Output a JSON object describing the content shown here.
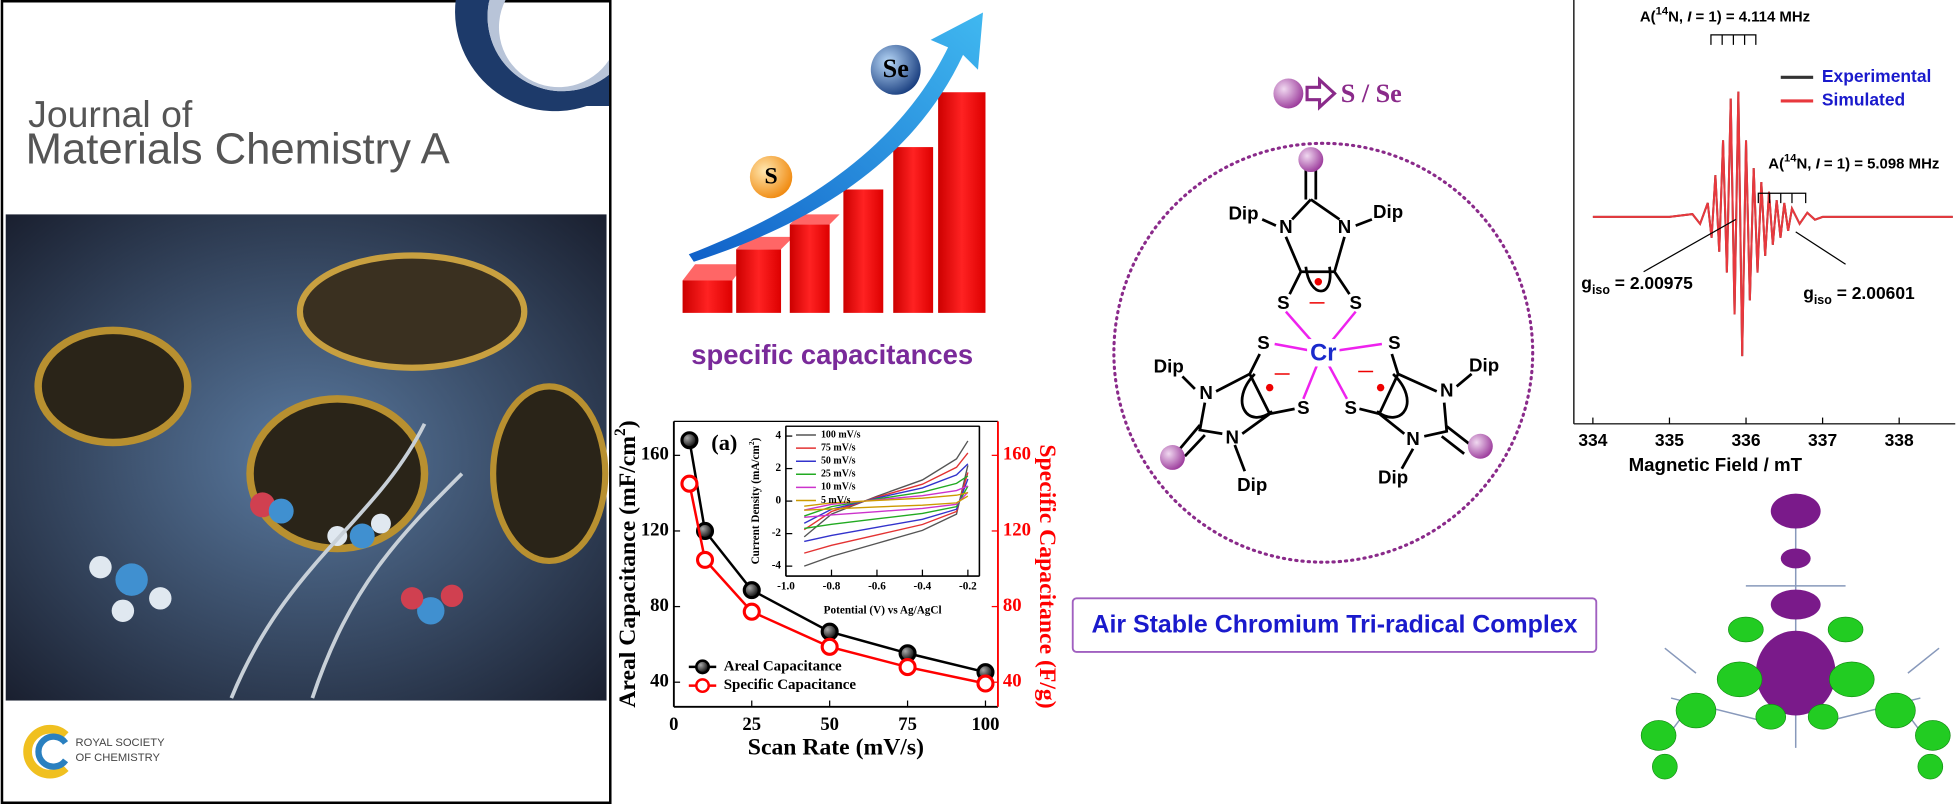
{
  "cover": {
    "journal_line1": "Journal of",
    "journal_line2": "Materials Chemistry A",
    "publisher_line1": "ROYAL SOCIETY",
    "publisher_line2": "OF CHEMISTRY"
  },
  "growth_graphic": {
    "caption": "specific capacitances",
    "low_element": "S",
    "high_element": "Se"
  },
  "molecule": {
    "legend": "S / Se",
    "metal": "Cr",
    "atoms": [
      "Dip",
      "N",
      "N",
      "Dip",
      "S",
      "S",
      "S",
      "Dip",
      "N",
      "S",
      "N",
      "Dip",
      "S",
      "Dip",
      "N",
      "S",
      "N",
      "Dip"
    ]
  },
  "banner": "Air Stable Chromium Tri-radical Complex",
  "chart_data": [
    {
      "type": "line",
      "panel_label": "(a)",
      "x_label": "Scan Rate (mV/s)",
      "y_label_parts": [
        "Areal Capacitance (mF/cm",
        "2",
        ")"
      ],
      "y2_label": "Specific Capacitance (F/g)",
      "x": [
        5,
        10,
        25,
        50,
        75,
        100
      ],
      "xlim": [
        0,
        104
      ],
      "xticks": [
        0,
        25,
        50,
        75,
        100
      ],
      "ylim": [
        27,
        178
      ],
      "yticks": [
        40,
        80,
        120,
        160
      ],
      "y2lim": [
        27,
        178
      ],
      "y2ticks": [
        40,
        80,
        120,
        160
      ],
      "markers": true,
      "legend": "lower left",
      "series": [
        {
          "name": "Areal Capacitance",
          "color": "#000000",
          "values": [
            168,
            120,
            88.7,
            66.7,
            55.3,
            45.3
          ]
        },
        {
          "name": "Specific Capacitance",
          "color": "#ff0000",
          "axis": "y2",
          "values": [
            145,
            104.7,
            77.3,
            58.7,
            48,
            39.3
          ]
        }
      ]
    },
    {
      "type": "cv",
      "x_label": "Potential (V) vs Ag/AgCl",
      "y_label_parts": [
        "Current Density (mA/cm",
        "2",
        ")"
      ],
      "x": [
        -0.92,
        -0.8,
        -0.6,
        -0.4,
        -0.25,
        -0.2
      ],
      "xlim": [
        -1.0,
        -0.15
      ],
      "xticks": [
        {
          "value": -1.0,
          "label": "-1.0"
        },
        -0.8,
        -0.6,
        -0.4,
        -0.2
      ],
      "ylim": [
        -4.6,
        4.6
      ],
      "yticks": [
        -4,
        -2,
        0,
        2,
        4
      ],
      "legend": "upper left",
      "series": [
        {
          "name": "100 mV/s",
          "color": "#555555",
          "values": [
            -2.2,
            -0.8,
            0.3,
            1.3,
            2.6,
            3.7
          ],
          "return_values": [
            -4.0,
            -3.4,
            -2.6,
            -1.8,
            -0.8,
            2.2
          ]
        },
        {
          "name": "75 mV/s",
          "color": "#e33333",
          "values": [
            -1.76,
            -0.64,
            0.24,
            1.04,
            2.08,
            2.96
          ],
          "return_values": [
            -3.2,
            -2.72,
            -2.08,
            -1.44,
            -0.64,
            1.76
          ]
        },
        {
          "name": "50 mV/s",
          "color": "#3333cc",
          "values": [
            -1.36,
            -0.5,
            0.19,
            0.81,
            1.61,
            2.29
          ],
          "return_values": [
            -2.48,
            -2.11,
            -1.61,
            -1.12,
            -0.5,
            1.36
          ]
        },
        {
          "name": "25 mV/s",
          "color": "#22aa22",
          "values": [
            -0.92,
            -0.34,
            0.13,
            0.55,
            1.09,
            1.55
          ],
          "return_values": [
            -1.68,
            -1.43,
            -1.09,
            -0.76,
            -0.34,
            0.92
          ]
        },
        {
          "name": "10 mV/s",
          "color": "#cc33cc",
          "values": [
            -0.55,
            -0.2,
            0.08,
            0.33,
            0.65,
            0.93
          ],
          "return_values": [
            -1.0,
            -0.85,
            -0.65,
            -0.45,
            -0.2,
            0.55
          ]
        },
        {
          "name": "5 mV/s",
          "color": "#cc9a00",
          "values": [
            -0.31,
            -0.11,
            0.04,
            0.18,
            0.36,
            0.52
          ],
          "return_values": [
            -0.56,
            -0.48,
            -0.36,
            -0.25,
            -0.11,
            0.31
          ]
        }
      ]
    },
    {
      "type": "line",
      "x_label": "Magnetic Field / mT",
      "x": [
        334,
        335,
        335.3,
        335.4,
        335.5,
        335.55,
        335.6,
        335.65,
        335.7,
        335.75,
        335.8,
        335.85,
        335.9,
        335.95,
        336.0,
        336.05,
        336.1,
        336.15,
        336.2,
        336.25,
        336.3,
        336.35,
        336.4,
        336.45,
        336.5,
        336.55,
        336.6,
        336.7,
        336.8,
        336.9,
        337,
        338,
        338.7
      ],
      "xlim": [
        333.8,
        338.7
      ],
      "xticks": [
        334,
        335,
        336,
        337,
        338
      ],
      "ylim": [
        -1.2,
        1.2
      ],
      "legend": "upper right",
      "series": [
        {
          "name": "Experimental",
          "color": "#333333",
          "values": [
            0,
            0,
            0.02,
            -0.05,
            0.1,
            -0.15,
            0.3,
            -0.25,
            0.55,
            -0.4,
            0.85,
            -0.7,
            0.9,
            -1.0,
            0.55,
            -0.6,
            0.35,
            -0.4,
            0.25,
            -0.28,
            0.18,
            -0.2,
            0.12,
            -0.15,
            0.1,
            -0.1,
            0.06,
            -0.05,
            0.03,
            -0.02,
            0,
            0,
            0
          ]
        },
        {
          "name": "Simulated",
          "color": "#e8383d",
          "values": [
            0,
            0,
            0.02,
            -0.05,
            0.1,
            -0.15,
            0.3,
            -0.25,
            0.55,
            -0.4,
            0.85,
            -0.7,
            0.9,
            -1.0,
            0.55,
            -0.6,
            0.35,
            -0.4,
            0.25,
            -0.28,
            0.18,
            -0.2,
            0.12,
            -0.15,
            0.1,
            -0.1,
            0.06,
            -0.05,
            0.03,
            -0.02,
            0,
            0,
            0
          ]
        }
      ],
      "annotations": [
        {
          "parts": [
            "A(",
            "14",
            "N, ",
            "I",
            " = 1) = 4.114 MHz"
          ]
        },
        {
          "parts": [
            "A(",
            "14",
            "N, ",
            "I",
            " = 1) = 5.098 MHz"
          ]
        },
        {
          "parts": [
            "g",
            "iso",
            " = 2.00975"
          ]
        },
        {
          "parts": [
            "g",
            "iso",
            " = 2.00601"
          ]
        }
      ]
    }
  ]
}
